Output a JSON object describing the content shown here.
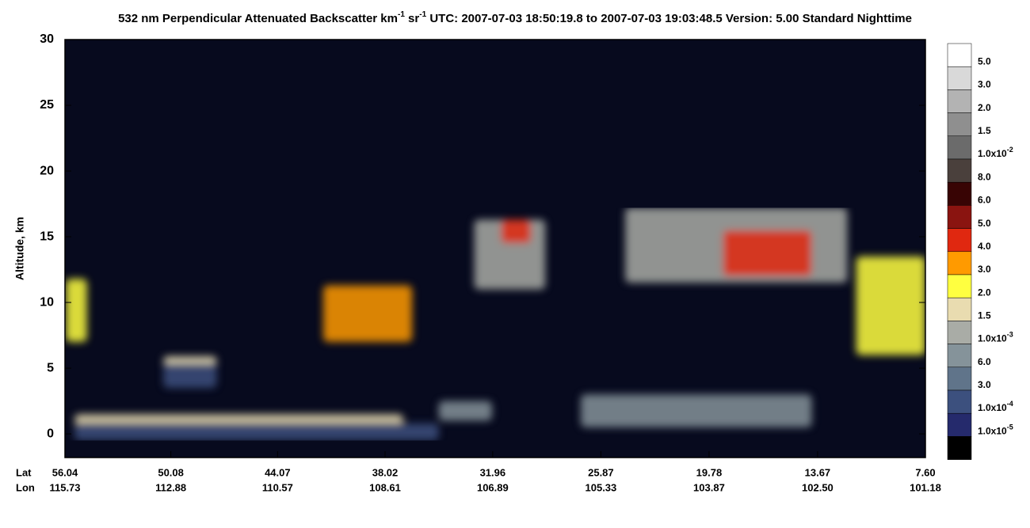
{
  "chart_data": {
    "type": "curtain",
    "title_parts": [
      "532 nm Perpendicular Attenuated Backscatter km",
      "-1",
      " sr",
      "-1",
      "  UTC: 2007-07-03 18:50:19.8 to 2007-07-03 19:03:48.5  Version: 5.00 Standard Nighttime"
    ],
    "y_label": "Altitude, km",
    "ylim": [
      -1.8,
      30
    ],
    "yticks": [
      0,
      5,
      10,
      15,
      20,
      25,
      30
    ],
    "xlim": [
      56.04,
      7.6
    ],
    "lat_row_label": "Lat",
    "lon_row_label": "Lon",
    "xticks": [
      56.04,
      50.08,
      44.07,
      38.02,
      31.96,
      25.87,
      19.78,
      13.67,
      {
        "value": 7.6,
        "label": "7.60"
      }
    ],
    "lon_ticks": [
      115.73,
      112.88,
      110.57,
      108.61,
      106.89,
      105.33,
      103.87,
      {
        "value": 102.5,
        "label": "102.50"
      },
      101.18
    ],
    "features": [
      {
        "lat0": 55.5,
        "lat1": 37,
        "base": 0.7,
        "top": 1.5,
        "color": "#e9dcb0"
      },
      {
        "lat0": 55.5,
        "lat1": 35,
        "base": -0.5,
        "top": 0.8,
        "color": "#3c507e"
      },
      {
        "lat0": 50.5,
        "lat1": 47.5,
        "base": 3.5,
        "top": 5.8,
        "color": "#3c507e"
      },
      {
        "lat0": 50.5,
        "lat1": 47.5,
        "base": 5.3,
        "top": 5.9,
        "color": "#e9dcb0"
      },
      {
        "lat0": 56,
        "lat1": 54.8,
        "base": 7,
        "top": 11.8,
        "color": "#ffff40"
      },
      {
        "lat0": 41.5,
        "lat1": 36.5,
        "base": 7,
        "top": 11.3,
        "color": "#ff9a00"
      },
      {
        "lat0": 33,
        "lat1": 29,
        "base": 11,
        "top": 16.3,
        "color": "#a9aca6"
      },
      {
        "lat0": 31.5,
        "lat1": 29.8,
        "base": 14.5,
        "top": 16.3,
        "color": "#e02810"
      },
      {
        "lat0": 24.5,
        "lat1": 12,
        "base": 11.5,
        "top": 17.2,
        "color": "#a9aca6"
      },
      {
        "lat0": 19,
        "lat1": 14,
        "base": 12,
        "top": 15.5,
        "color": "#e02810"
      },
      {
        "lat0": 11.5,
        "lat1": 7.6,
        "base": 6,
        "top": 13.5,
        "color": "#ffff40"
      },
      {
        "lat0": 27,
        "lat1": 14,
        "base": 0.5,
        "top": 3,
        "color": "#85939a"
      },
      {
        "lat0": 35,
        "lat1": 32,
        "base": 1,
        "top": 2.5,
        "color": "#85939a"
      }
    ],
    "colorbar": {
      "colors": [
        "#ffffff",
        "#d9d9d9",
        "#b3b3b3",
        "#8f8f8f",
        "#6b6b6b",
        "#4a403c",
        "#380404",
        "#8a1410",
        "#e02810",
        "#ff9a00",
        "#ffff40",
        "#e9dcb0",
        "#a9aca6",
        "#85939a",
        "#60748a",
        "#3c507e",
        "#252a6c",
        "#000000"
      ],
      "labels": [
        "5.0",
        "3.0",
        "2.0",
        "1.5",
        {
          "base": "1.0x10",
          "exp": "-2"
        },
        "8.0",
        "6.0",
        "5.0",
        "4.0",
        "3.0",
        "2.0",
        "1.5",
        {
          "base": "1.0x10",
          "exp": "-3"
        },
        "6.0",
        "3.0",
        {
          "base": "1.0x10",
          "exp": "-4"
        },
        {
          "base": "1.0x10",
          "exp": "-5"
        }
      ]
    }
  }
}
